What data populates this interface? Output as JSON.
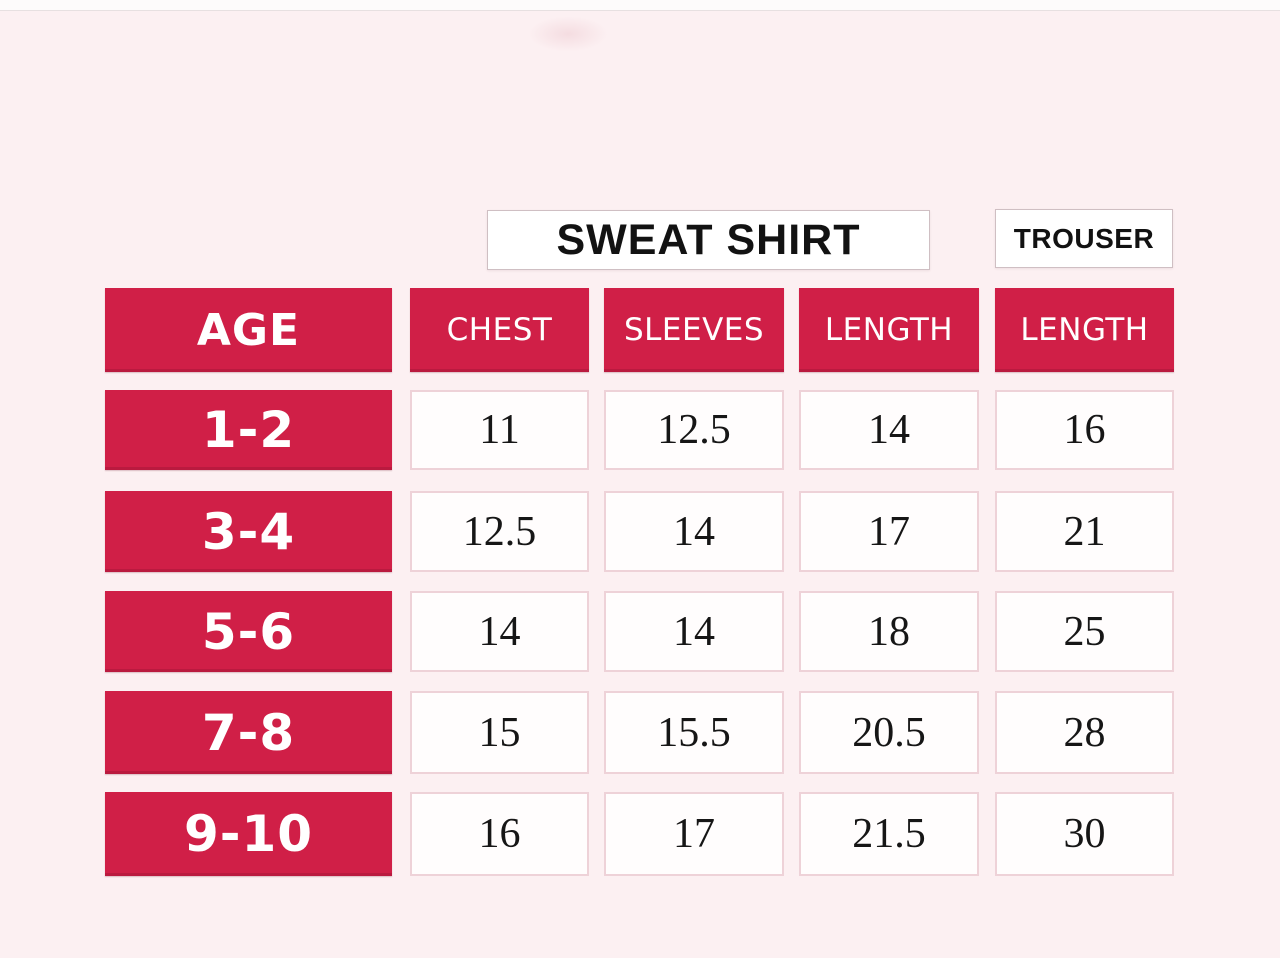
{
  "colors": {
    "accent": "#d01f47",
    "background": "#fcf0f2",
    "cell_bg": "#fffdfd",
    "cell_border": "#eed2d8",
    "box_border": "#cfbfc3",
    "text_dark": "#161616"
  },
  "chart_data": {
    "type": "table",
    "group_headers": [
      {
        "label": "SWEAT SHIRT",
        "spans_columns": [
          "CHEST",
          "SLEEVES",
          "LENGTH"
        ]
      },
      {
        "label": "TROUSER",
        "spans_columns": [
          "LENGTH"
        ]
      }
    ],
    "row_header_label": "AGE",
    "column_headers": [
      "CHEST",
      "SLEEVES",
      "LENGTH",
      "LENGTH"
    ],
    "rows": [
      {
        "age": "1-2",
        "values": [
          "11",
          "12.5",
          "14",
          "16"
        ]
      },
      {
        "age": "3-4",
        "values": [
          "12.5",
          "14",
          "17",
          "21"
        ]
      },
      {
        "age": "5-6",
        "values": [
          "14",
          "14",
          "18",
          "25"
        ]
      },
      {
        "age": "7-8",
        "values": [
          "15",
          "15.5",
          "20.5",
          "28"
        ]
      },
      {
        "age": "9-10",
        "values": [
          "16",
          "17",
          "21.5",
          "30"
        ]
      }
    ]
  }
}
